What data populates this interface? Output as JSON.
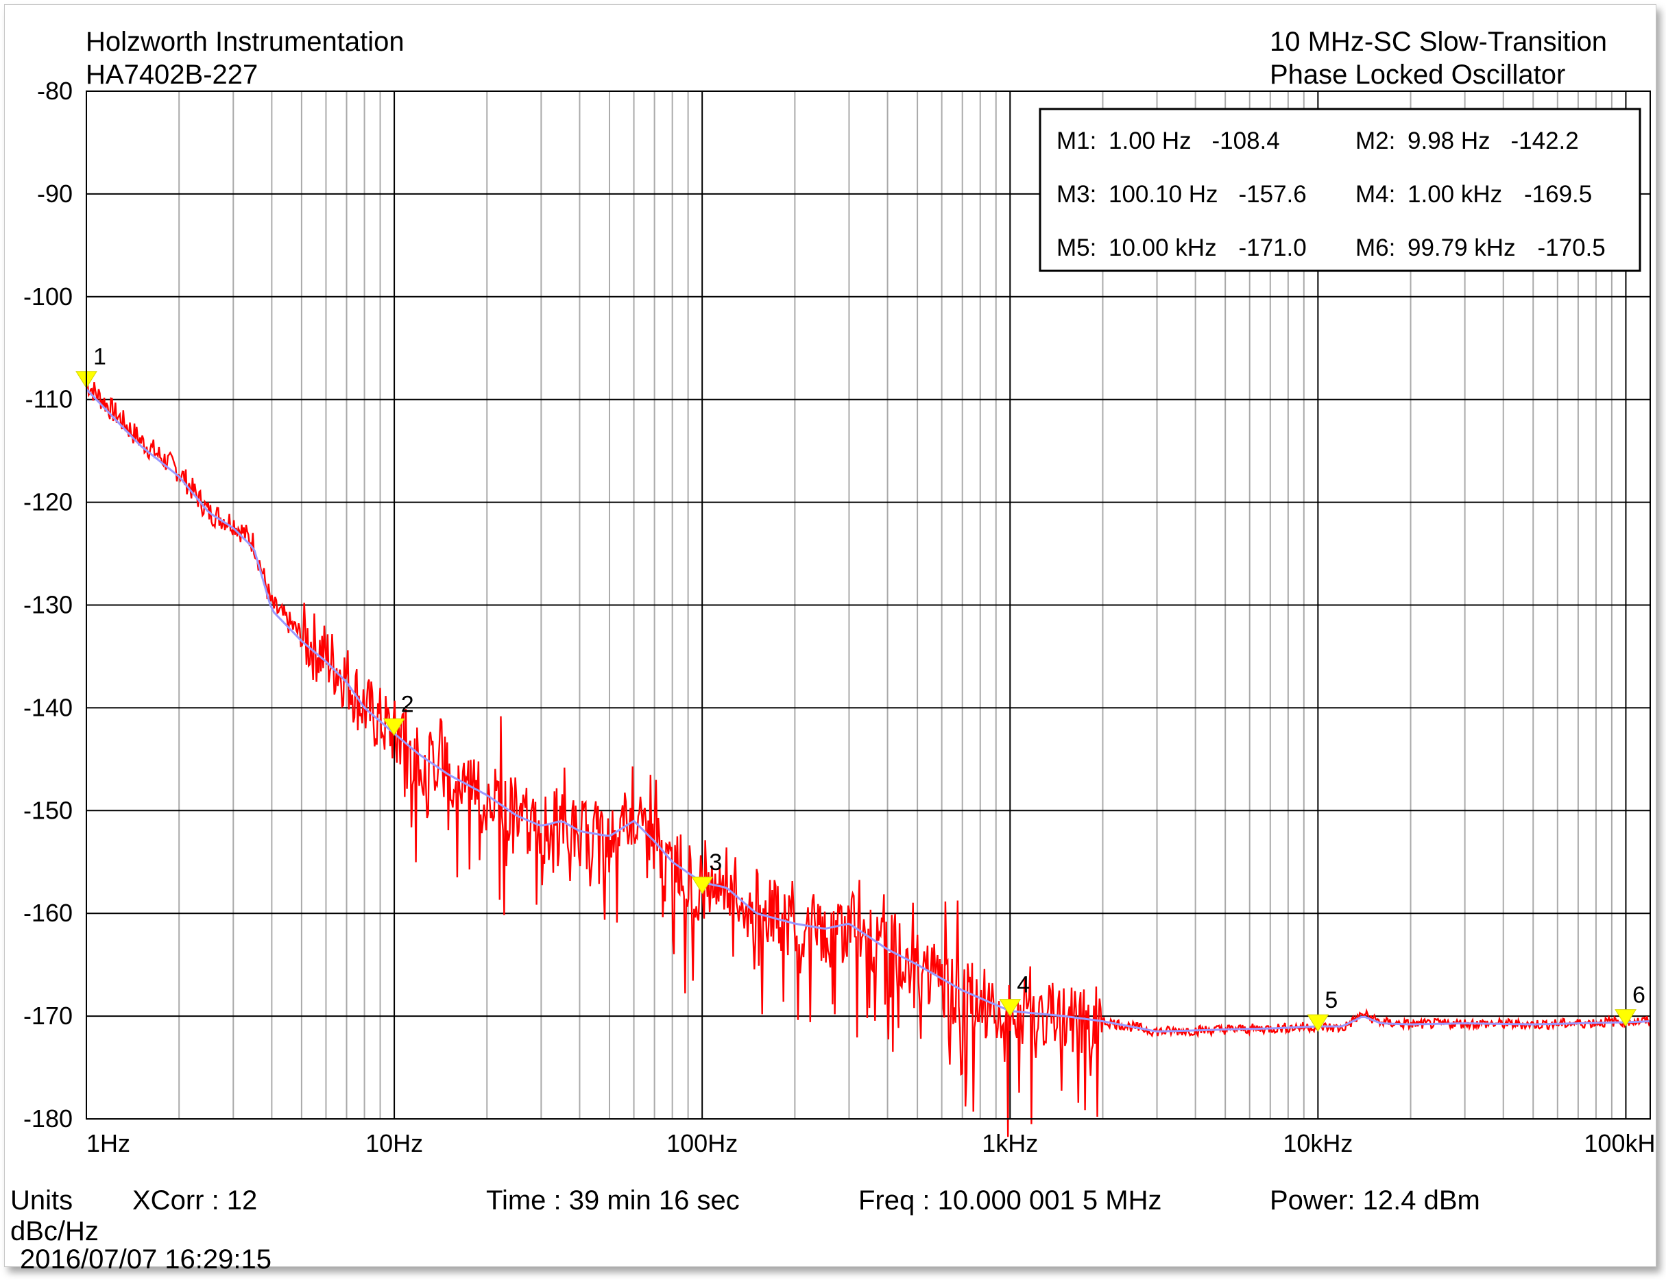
{
  "header": {
    "company": "Holzworth Instrumentation",
    "model": "HA7402B-227",
    "title_line1": "10 MHz-SC Slow-Transition",
    "title_line2": "Phase Locked Oscillator"
  },
  "footer": {
    "units_label": "Units",
    "units_value": "dBc/Hz",
    "xcorr": "XCorr : 12",
    "time": "Time : 39 min 16 sec",
    "freq": "Freq : 10.000 001 5 MHz",
    "power": "Power: 12.4 dBm",
    "timestamp": "2016/07/07 16:29:15"
  },
  "colors": {
    "trace": "#ff0000",
    "smoothed": "#9999ff",
    "marker": "#ffff00",
    "grid": "#aaaaaa",
    "major_grid": "#000000"
  },
  "chart_data": {
    "type": "line",
    "xscale": "log",
    "xlim": [
      1,
      120000
    ],
    "ylim": [
      -180,
      -80
    ],
    "yticks": [
      -80,
      -90,
      -100,
      -110,
      -120,
      -130,
      -140,
      -150,
      -160,
      -170,
      -180
    ],
    "ytick_labels": [
      "-80",
      "-90",
      "-100",
      "-110",
      "-120",
      "-130",
      "-140",
      "-150",
      "-160",
      "-170",
      "-180"
    ],
    "xticks": [
      1,
      10,
      100,
      1000,
      10000,
      100000
    ],
    "xtick_labels": [
      "1Hz",
      "10Hz",
      "100Hz",
      "1kHz",
      "10kHz",
      "100kHz"
    ],
    "grid": true,
    "series": [
      {
        "role": "raw",
        "x": [
          1,
          1.5,
          2,
          2.5,
          3,
          3.5,
          4,
          5,
          6,
          7,
          8,
          10,
          12,
          15,
          20,
          25,
          30,
          35,
          40,
          50,
          60,
          70,
          80,
          100,
          120,
          150,
          200,
          250,
          300,
          400,
          500,
          700,
          1000,
          1500,
          2000,
          3000,
          5000,
          7000,
          10000,
          12000,
          14000,
          16000,
          20000,
          30000,
          50000,
          70000,
          100000,
          120000
        ],
        "y": [
          -108.4,
          -114,
          -117,
          -121,
          -122,
          -124,
          -130,
          -133,
          -135,
          -137,
          -140,
          -142.5,
          -144.5,
          -146,
          -148,
          -150,
          -152,
          -151,
          -152,
          -153,
          -150,
          -153,
          -155,
          -157.5,
          -157,
          -160,
          -161,
          -162,
          -161,
          -163,
          -165,
          -168,
          -169.5,
          -170,
          -170.5,
          -171.5,
          -171.3,
          -171.2,
          -171.0,
          -171.2,
          -169.8,
          -170.6,
          -170.8,
          -170.7,
          -170.8,
          -170.7,
          -170.5,
          -170.5
        ]
      },
      {
        "role": "smoothed",
        "x": [
          1,
          1.5,
          2,
          2.5,
          3,
          3.5,
          4,
          5,
          6,
          7,
          8,
          10,
          12,
          15,
          20,
          25,
          30,
          35,
          40,
          50,
          60,
          70,
          80,
          100,
          120,
          150,
          200,
          250,
          300,
          400,
          500,
          700,
          1000,
          1500,
          2000,
          3000,
          5000,
          7000,
          10000,
          12000,
          14000,
          16000,
          20000,
          30000,
          50000,
          70000,
          100000,
          120000
        ],
        "y": [
          -109,
          -114.5,
          -117.5,
          -121,
          -122.5,
          -124.5,
          -130.5,
          -133.5,
          -135.5,
          -137.5,
          -140,
          -142.5,
          -144.5,
          -146.5,
          -148.5,
          -150.5,
          -151.5,
          -151,
          -152,
          -152.5,
          -151,
          -153,
          -155,
          -157,
          -157.5,
          -160,
          -161,
          -161.5,
          -161,
          -163.5,
          -165,
          -167.5,
          -169.5,
          -170,
          -170.5,
          -171.5,
          -171.3,
          -171.2,
          -171.0,
          -171.0,
          -170.0,
          -170.7,
          -170.8,
          -170.7,
          -170.8,
          -170.7,
          -170.6,
          -170.5
        ]
      }
    ],
    "markers": [
      {
        "id": "1",
        "label": "M1:",
        "freq": "1.00 Hz",
        "value": "-108.4",
        "x": 1.0,
        "y": -108.4
      },
      {
        "id": "2",
        "label": "M2:",
        "freq": "9.98 Hz",
        "value": "-142.2",
        "x": 9.98,
        "y": -142.2
      },
      {
        "id": "3",
        "label": "M3:",
        "freq": "100.10 Hz",
        "value": "-157.6",
        "x": 100.1,
        "y": -157.6
      },
      {
        "id": "4",
        "label": "M4:",
        "freq": "1.00 kHz",
        "value": "-169.5",
        "x": 1000,
        "y": -169.5
      },
      {
        "id": "5",
        "label": "M5:",
        "freq": "10.00 kHz",
        "value": "-171.0",
        "x": 10000,
        "y": -171.0
      },
      {
        "id": "6",
        "label": "M6:",
        "freq": "99.79 kHz",
        "value": "-170.5",
        "x": 99790,
        "y": -170.5
      }
    ],
    "marker_table_position": "top-right"
  }
}
